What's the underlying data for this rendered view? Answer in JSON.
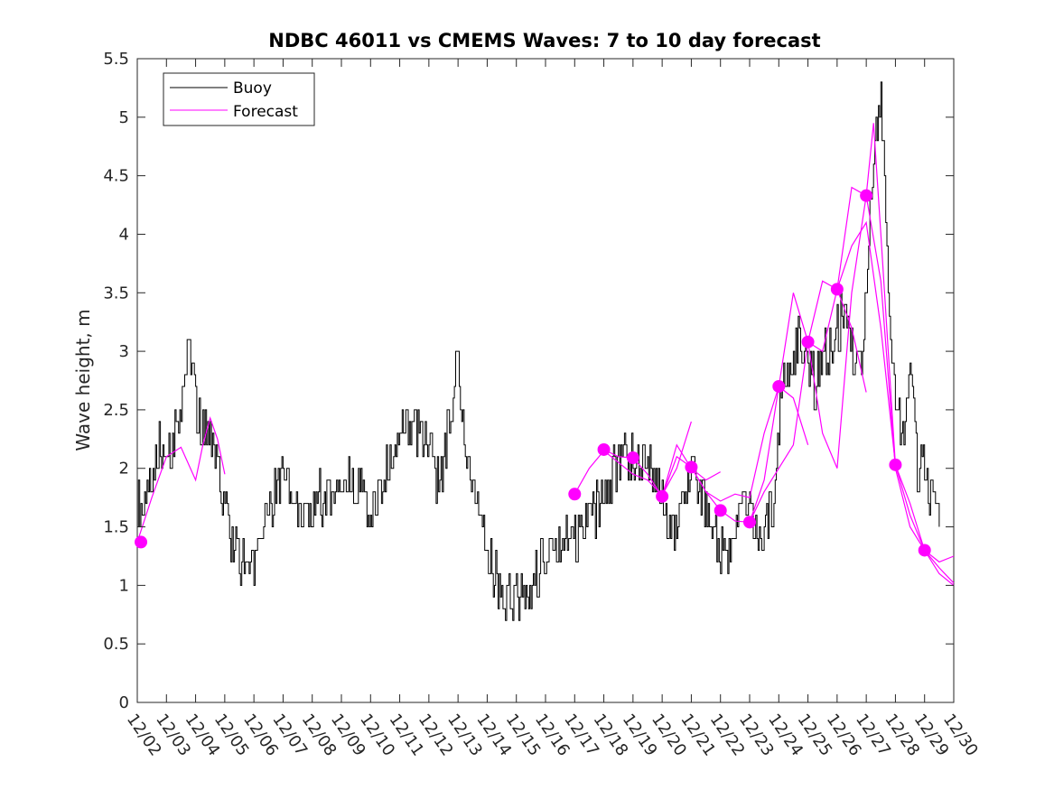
{
  "chart_data": {
    "type": "line",
    "title": "NDBC 46011 vs CMEMS Waves: 7 to 10 day forecast",
    "xlabel": "",
    "ylabel": "Wave height, m",
    "xlim": [
      "2023-12-02",
      "2023-12-30"
    ],
    "ylim": [
      0,
      5.5
    ],
    "yticks": [
      0,
      0.5,
      1,
      1.5,
      2,
      2.5,
      3,
      3.5,
      4,
      4.5,
      5,
      5.5
    ],
    "ytick_labels": [
      "0",
      "0.5",
      "1",
      "1.5",
      "2",
      "2.5",
      "3",
      "3.5",
      "4",
      "4.5",
      "5",
      "5.5"
    ],
    "xtick_labels": [
      "12/02",
      "12/03",
      "12/04",
      "12/05",
      "12/06",
      "12/07",
      "12/08",
      "12/09",
      "12/10",
      "12/11",
      "12/12",
      "12/13",
      "12/14",
      "12/15",
      "12/16",
      "12/17",
      "12/18",
      "12/19",
      "12/20",
      "12/21",
      "12/22",
      "12/23",
      "12/24",
      "12/25",
      "12/26",
      "12/27",
      "12/28",
      "12/29",
      "12/30"
    ],
    "grid": false,
    "legend": {
      "position": "top-left",
      "entries": [
        "Buoy",
        "Forecast"
      ]
    },
    "colors": {
      "buoy": "#000000",
      "forecast": "#ff00ff"
    },
    "series": [
      {
        "name": "Buoy",
        "style": "line",
        "x": [
          "2023-12-02 00:00",
          "2023-12-02 06:00",
          "2023-12-02 12:00",
          "2023-12-02 18:00",
          "2023-12-03 00:00",
          "2023-12-03 06:00",
          "2023-12-03 12:00",
          "2023-12-03 18:00",
          "2023-12-04 00:00",
          "2023-12-04 06:00",
          "2023-12-04 12:00",
          "2023-12-04 18:00",
          "2023-12-05 00:00",
          "2023-12-05 06:00",
          "2023-12-05 12:00",
          "2023-12-05 18:00",
          "2023-12-06 00:00",
          "2023-12-06 06:00",
          "2023-12-06 12:00",
          "2023-12-06 18:00",
          "2023-12-07 00:00",
          "2023-12-07 12:00",
          "2023-12-08 00:00",
          "2023-12-08 12:00",
          "2023-12-09 00:00",
          "2023-12-09 12:00",
          "2023-12-10 00:00",
          "2023-12-10 12:00",
          "2023-12-11 00:00",
          "2023-12-11 12:00",
          "2023-12-12 00:00",
          "2023-12-12 06:00",
          "2023-12-12 12:00",
          "2023-12-12 18:00",
          "2023-12-13 00:00",
          "2023-12-13 06:00",
          "2023-12-13 12:00",
          "2023-12-13 18:00",
          "2023-12-14 00:00",
          "2023-12-14 06:00",
          "2023-12-14 12:00",
          "2023-12-14 18:00",
          "2023-12-15 00:00",
          "2023-12-15 12:00",
          "2023-12-16 00:00",
          "2023-12-16 12:00",
          "2023-12-17 00:00",
          "2023-12-17 12:00",
          "2023-12-18 00:00",
          "2023-12-18 12:00",
          "2023-12-19 00:00",
          "2023-12-19 12:00",
          "2023-12-20 00:00",
          "2023-12-20 06:00",
          "2023-12-20 12:00",
          "2023-12-20 18:00",
          "2023-12-21 00:00",
          "2023-12-21 06:00",
          "2023-12-21 12:00",
          "2023-12-21 18:00",
          "2023-12-22 00:00",
          "2023-12-22 06:00",
          "2023-12-22 12:00",
          "2023-12-22 18:00",
          "2023-12-23 00:00",
          "2023-12-23 06:00",
          "2023-12-23 12:00",
          "2023-12-23 18:00",
          "2023-12-24 00:00",
          "2023-12-24 06:00",
          "2023-12-24 12:00",
          "2023-12-24 18:00",
          "2023-12-25 00:00",
          "2023-12-25 06:00",
          "2023-12-25 12:00",
          "2023-12-25 18:00",
          "2023-12-26 00:00",
          "2023-12-26 06:00",
          "2023-12-26 12:00",
          "2023-12-26 18:00",
          "2023-12-27 00:00",
          "2023-12-27 06:00",
          "2023-12-27 12:00",
          "2023-12-27 18:00",
          "2023-12-28 00:00",
          "2023-12-28 06:00",
          "2023-12-28 12:00",
          "2023-12-28 18:00",
          "2023-12-29 00:00",
          "2023-12-29 06:00",
          "2023-12-29 12:00"
        ],
        "y": [
          1.75,
          1.65,
          1.9,
          2.3,
          2.1,
          2.25,
          2.5,
          3.2,
          2.5,
          2.3,
          2.2,
          2.0,
          1.6,
          1.4,
          1.25,
          1.15,
          1.1,
          1.3,
          1.6,
          1.8,
          1.9,
          1.7,
          1.7,
          1.8,
          1.85,
          1.9,
          1.6,
          2.0,
          2.3,
          2.4,
          2.1,
          1.9,
          2.1,
          2.5,
          2.9,
          2.2,
          1.8,
          1.5,
          1.3,
          1.1,
          0.95,
          0.9,
          0.85,
          0.95,
          1.3,
          1.4,
          1.35,
          1.5,
          1.8,
          2.1,
          2.1,
          2.1,
          1.8,
          1.45,
          1.45,
          1.7,
          2.1,
          1.8,
          1.7,
          1.5,
          1.3,
          1.2,
          1.5,
          1.7,
          1.6,
          1.55,
          1.5,
          1.6,
          2.4,
          2.8,
          3.0,
          3.1,
          2.9,
          2.7,
          2.9,
          3.0,
          3.2,
          3.3,
          3.0,
          2.8,
          3.5,
          4.6,
          5.2,
          3.5,
          2.5,
          2.3,
          2.8,
          2.0,
          2.0,
          1.7,
          1.5
        ]
      },
      {
        "name": "Forecast",
        "style": "line",
        "x": [
          "2023-12-02 00:00",
          "2023-12-02 12:00",
          "2023-12-03 00:00",
          "2023-12-03 12:00",
          "2023-12-04 00:00",
          "2023-12-04 06:00",
          "2023-12-04 12:00",
          "2023-12-04 18:00",
          "2023-12-05 00:00"
        ],
        "y": [
          1.37,
          1.75,
          2.1,
          2.18,
          1.9,
          2.2,
          2.43,
          2.25,
          1.95
        ]
      },
      {
        "name": "Forecast",
        "style": "line",
        "x": [
          "2023-12-17 00:00",
          "2023-12-17 12:00",
          "2023-12-18 00:00",
          "2023-12-18 12:00",
          "2023-12-19 00:00",
          "2023-12-19 12:00",
          "2023-12-20 00:00",
          "2023-12-20 12:00",
          "2023-12-21 00:00"
        ],
        "y": [
          1.78,
          2.0,
          2.15,
          2.05,
          1.95,
          1.9,
          1.77,
          2.0,
          2.4
        ]
      },
      {
        "name": "Forecast",
        "style": "line",
        "x": [
          "2023-12-18 00:00",
          "2023-12-18 12:00",
          "2023-12-19 00:00",
          "2023-12-19 12:00",
          "2023-12-20 00:00",
          "2023-12-20 12:00",
          "2023-12-21 00:00",
          "2023-12-21 12:00",
          "2023-12-22 00:00"
        ],
        "y": [
          2.16,
          2.1,
          2.09,
          1.95,
          1.76,
          2.2,
          2.0,
          1.9,
          1.97
        ]
      },
      {
        "name": "Forecast",
        "style": "line",
        "x": [
          "2023-12-20 00:00",
          "2023-12-20 12:00",
          "2023-12-21 00:00",
          "2023-12-21 12:00",
          "2023-12-22 00:00",
          "2023-12-22 12:00",
          "2023-12-23 00:00",
          "2023-12-23 12:00",
          "2023-12-24 00:00",
          "2023-12-24 12:00",
          "2023-12-25 00:00"
        ],
        "y": [
          1.76,
          2.1,
          2.01,
          1.8,
          1.64,
          1.55,
          1.54,
          1.9,
          2.7,
          2.6,
          2.2
        ]
      },
      {
        "name": "Forecast",
        "style": "line",
        "x": [
          "2023-12-21 00:00",
          "2023-12-21 12:00",
          "2023-12-22 00:00",
          "2023-12-22 12:00",
          "2023-12-23 00:00",
          "2023-12-23 12:00",
          "2023-12-24 00:00",
          "2023-12-24 12:00",
          "2023-12-25 00:00",
          "2023-12-25 12:00",
          "2023-12-26 00:00",
          "2023-12-26 12:00",
          "2023-12-27 00:00"
        ],
        "y": [
          2.01,
          1.8,
          1.72,
          1.78,
          1.75,
          2.3,
          2.7,
          3.5,
          3.08,
          3.6,
          3.53,
          3.2,
          2.65
        ]
      },
      {
        "name": "Forecast",
        "style": "line",
        "x": [
          "2023-12-23 00:00",
          "2023-12-23 12:00",
          "2023-12-24 00:00",
          "2023-12-24 12:00",
          "2023-12-25 00:00",
          "2023-12-25 12:00",
          "2023-12-26 00:00",
          "2023-12-26 12:00",
          "2023-12-27 00:00",
          "2023-12-27 12:00",
          "2023-12-28 00:00",
          "2023-12-28 12:00",
          "2023-12-29 00:00",
          "2023-12-29 12:00",
          "2023-12-30 00:00"
        ],
        "y": [
          1.54,
          1.8,
          2.0,
          2.2,
          3.08,
          2.3,
          2.0,
          3.5,
          4.33,
          3.6,
          2.0,
          1.5,
          1.3,
          1.2,
          1.25
        ]
      },
      {
        "name": "Forecast",
        "style": "line",
        "x": [
          "2023-12-25 00:00",
          "2023-12-25 12:00",
          "2023-12-26 00:00",
          "2023-12-26 12:00",
          "2023-12-27 00:00",
          "2023-12-27 06:00",
          "2023-12-27 12:00",
          "2023-12-28 00:00",
          "2023-12-28 12:00",
          "2023-12-29 00:00",
          "2023-12-29 12:00",
          "2023-12-30 00:00"
        ],
        "y": [
          3.08,
          3.0,
          3.53,
          4.4,
          4.33,
          4.95,
          4.0,
          2.03,
          1.6,
          1.3,
          1.1,
          1.0
        ]
      },
      {
        "name": "Forecast",
        "style": "line",
        "x": [
          "2023-12-26 00:00",
          "2023-12-26 12:00",
          "2023-12-27 00:00",
          "2023-12-27 12:00",
          "2023-12-28 00:00",
          "2023-12-28 12:00",
          "2023-12-29 00:00",
          "2023-12-29 12:00",
          "2023-12-30 00:00"
        ],
        "y": [
          3.53,
          3.9,
          4.1,
          3.2,
          2.03,
          1.7,
          1.3,
          1.15,
          1.02
        ]
      },
      {
        "name": "Forecast",
        "style": "markers",
        "x": [
          "2023-12-02 03:00",
          "2023-12-17 00:00",
          "2023-12-18 00:00",
          "2023-12-19 00:00",
          "2023-12-20 00:00",
          "2023-12-21 00:00",
          "2023-12-22 00:00",
          "2023-12-23 00:00",
          "2023-12-24 00:00",
          "2023-12-25 00:00",
          "2023-12-26 00:00",
          "2023-12-27 00:00",
          "2023-12-28 00:00",
          "2023-12-29 00:00"
        ],
        "y": [
          1.37,
          1.78,
          2.16,
          2.09,
          1.76,
          2.01,
          1.64,
          1.54,
          2.7,
          3.08,
          3.53,
          4.33,
          2.03,
          1.3
        ]
      }
    ]
  }
}
